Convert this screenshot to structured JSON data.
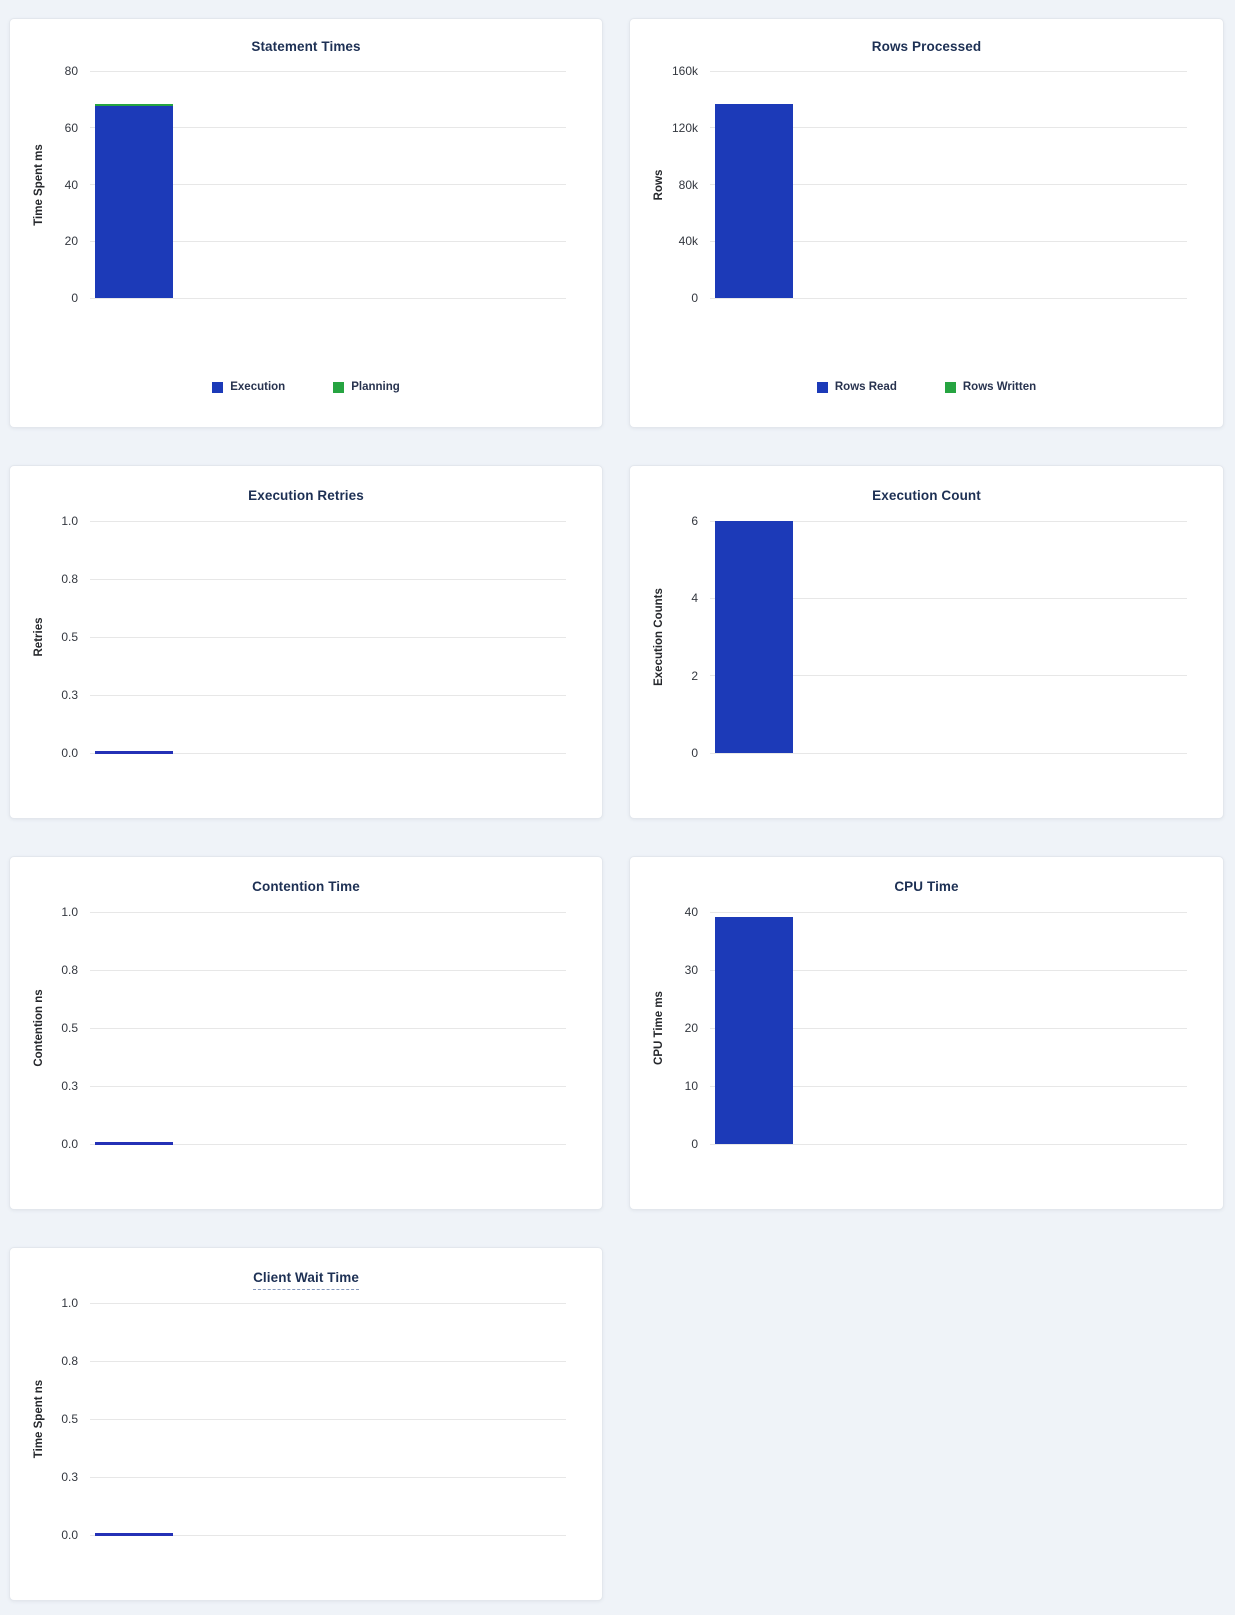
{
  "colors": {
    "bar_blue": "#1c3ab8",
    "bar_green": "#26a441",
    "zero_line": "#2431b6",
    "grid": "#e7e7e7",
    "title_text": "#1d3054",
    "underline": "#8699bd",
    "background": "#eff3f8",
    "card_border": "#e3e7ed"
  },
  "chart_data": [
    {
      "type": "bar",
      "title": "Statement Times",
      "ylabel": "Time Spent ms",
      "ymax": 80,
      "yticks": [
        "0",
        "20",
        "40",
        "60",
        "80"
      ],
      "stacked": true,
      "grid": true,
      "legend_position": "bottom-center",
      "series": [
        {
          "name": "Execution",
          "value": 67.5,
          "color": "#1c3ab8"
        },
        {
          "name": "Planning",
          "value": 0.7,
          "color": "#26a441"
        }
      ],
      "legend": [
        {
          "label": "Execution",
          "color": "#1c3ab8"
        },
        {
          "label": "Planning",
          "color": "#26a441"
        }
      ]
    },
    {
      "type": "bar",
      "title": "Rows Processed",
      "ylabel": "Rows",
      "ymax": 160000,
      "yticks": [
        "0",
        "40k",
        "80k",
        "120k",
        "160k"
      ],
      "stacked": true,
      "grid": true,
      "legend_position": "bottom-center",
      "series": [
        {
          "name": "Rows Read",
          "value": 137000,
          "color": "#1c3ab8"
        },
        {
          "name": "Rows Written",
          "value": 0,
          "color": "#26a441"
        }
      ],
      "legend": [
        {
          "label": "Rows Read",
          "color": "#1c3ab8"
        },
        {
          "label": "Rows Written",
          "color": "#26a441"
        }
      ]
    },
    {
      "type": "bar",
      "title": "Execution Retries",
      "ylabel": "Retries",
      "ymax": 1,
      "yticks": [
        "0.0",
        "0.3",
        "0.5",
        "0.8",
        "1.0"
      ],
      "grid": true,
      "series": [
        {
          "value": 0,
          "color": "#1c3ab8"
        }
      ]
    },
    {
      "type": "bar",
      "title": "Execution Count",
      "ylabel": "Execution Counts",
      "ymax": 6,
      "yticks": [
        "0",
        "2",
        "4",
        "6"
      ],
      "grid": true,
      "series": [
        {
          "value": 6,
          "color": "#1c3ab8"
        }
      ]
    },
    {
      "type": "bar",
      "title": "Contention Time",
      "ylabel": "Contention ns",
      "ymax": 1,
      "yticks": [
        "0.0",
        "0.3",
        "0.5",
        "0.8",
        "1.0"
      ],
      "grid": true,
      "series": [
        {
          "value": 0,
          "color": "#1c3ab8"
        }
      ]
    },
    {
      "type": "bar",
      "title": "CPU Time",
      "ylabel": "CPU Time ms",
      "ymax": 40,
      "yticks": [
        "0",
        "10",
        "20",
        "30",
        "40"
      ],
      "grid": true,
      "series": [
        {
          "value": 39.2,
          "color": "#1c3ab8"
        }
      ]
    },
    {
      "type": "bar",
      "title": "Client Wait Time",
      "title_underlined": true,
      "ylabel": "Time Spent ns",
      "ymax": 1,
      "yticks": [
        "0.0",
        "0.3",
        "0.5",
        "0.8",
        "1.0"
      ],
      "grid": true,
      "series": [
        {
          "value": 0,
          "color": "#1c3ab8"
        }
      ]
    }
  ]
}
